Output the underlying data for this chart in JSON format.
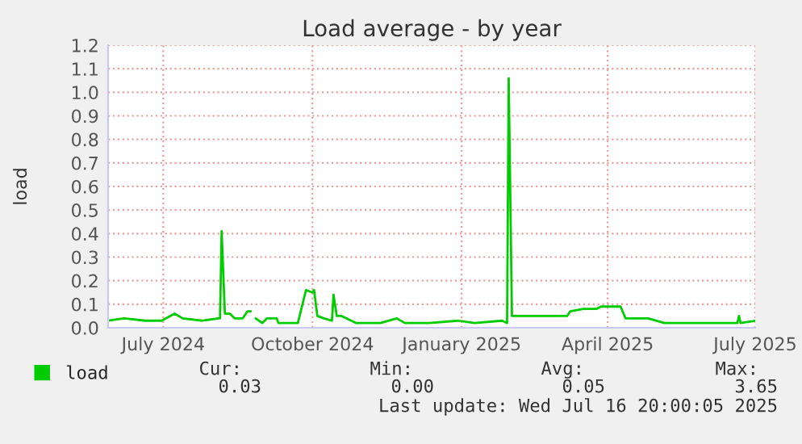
{
  "chart_data": {
    "type": "line",
    "title": "Load average - by year",
    "ylabel": "load",
    "x": [
      "2024-06-12",
      "2024-06-22",
      "2024-07-05",
      "2024-07-15",
      "2024-07-23",
      "2024-07-28",
      "2024-08-09",
      "2024-08-19",
      "2024-08-20",
      "2024-08-21",
      "2024-08-23",
      "2024-08-26",
      "2024-08-29",
      "2024-09-03",
      "2024-09-06",
      "2024-09-08",
      "2024-09-09",
      "2024-09-11",
      "2024-09-15",
      "2024-09-18",
      "2024-09-24",
      "2024-09-25",
      "2024-10-07",
      "2024-10-12",
      "2024-10-16",
      "2024-10-17",
      "2024-10-19",
      "2024-10-23",
      "2024-10-28",
      "2024-10-29",
      "2024-10-31",
      "2024-11-03",
      "2024-11-12",
      "2024-11-27",
      "2024-12-07",
      "2024-12-12",
      "2024-12-27",
      "2025-01-14",
      "2025-01-24",
      "2025-02-10",
      "2025-02-13",
      "2025-02-14",
      "2025-02-16",
      "2025-03-22",
      "2025-03-24",
      "2025-04-01",
      "2025-04-09",
      "2025-04-12",
      "2025-04-24",
      "2025-04-27",
      "2025-05-11",
      "2025-05-21",
      "2025-07-05",
      "2025-07-06",
      "2025-07-07",
      "2025-07-16"
    ],
    "series": [
      {
        "name": "load",
        "color": "#00cc00",
        "values": [
          0.03,
          0.04,
          0.03,
          0.03,
          0.06,
          0.04,
          0.03,
          0.04,
          0.04,
          0.41,
          0.06,
          0.06,
          0.04,
          0.04,
          0.07,
          0.07,
          null,
          0.04,
          0.02,
          0.04,
          0.04,
          0.02,
          0.02,
          0.16,
          0.15,
          0.16,
          0.05,
          0.04,
          0.03,
          0.14,
          0.05,
          0.05,
          0.02,
          0.02,
          0.04,
          0.02,
          0.02,
          0.03,
          0.02,
          0.03,
          0.02,
          1.06,
          0.05,
          0.05,
          0.07,
          0.08,
          0.08,
          0.09,
          0.09,
          0.04,
          0.04,
          0.02,
          0.02,
          0.05,
          0.02,
          0.03
        ]
      }
    ],
    "xlim": [
      "2024-06-12",
      "2025-07-16"
    ],
    "xticks": [
      {
        "value": "2024-07-16",
        "label": "July 2024"
      },
      {
        "value": "2024-10-16",
        "label": "October 2024"
      },
      {
        "value": "2025-01-16",
        "label": "January 2025"
      },
      {
        "value": "2025-04-16",
        "label": "April 2025"
      },
      {
        "value": "2025-07-16",
        "label": "July 2025"
      }
    ],
    "ylim": [
      0,
      1.2
    ],
    "yticks": [
      {
        "value": 0,
        "label": "0.0"
      },
      {
        "value": 0.1,
        "label": "0.1"
      },
      {
        "value": 0.2,
        "label": "0.2"
      },
      {
        "value": 0.3,
        "label": "0.3"
      },
      {
        "value": 0.4,
        "label": "0.4"
      },
      {
        "value": 0.5,
        "label": "0.5"
      },
      {
        "value": 0.6,
        "label": "0.6"
      },
      {
        "value": 0.7,
        "label": "0.7"
      },
      {
        "value": 0.8,
        "label": "0.8"
      },
      {
        "value": 0.9,
        "label": "0.9"
      },
      {
        "value": 1.0,
        "label": "1.0"
      },
      {
        "value": 1.1,
        "label": "1.1"
      },
      {
        "value": 1.2,
        "label": "1.2"
      }
    ],
    "grid": true,
    "legend": "bottom",
    "marker": "none",
    "line_style": "solid",
    "annotations": [
      "Cur:",
      "Min:",
      "Avg:",
      "Max:",
      "0.03",
      "0.00",
      "0.05",
      "3.65",
      "Last update: Wed Jul 16 20:00:05 2025"
    ]
  }
}
